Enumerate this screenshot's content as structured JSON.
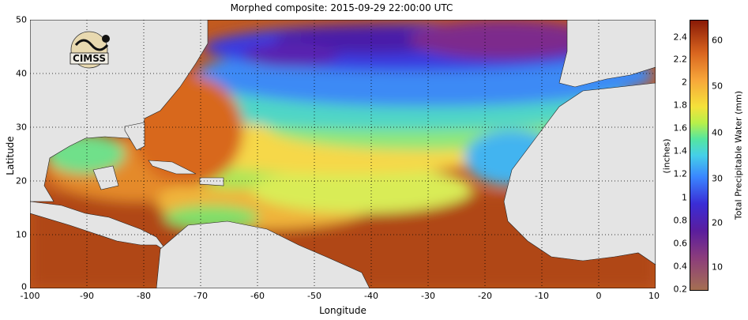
{
  "title": "Morphed composite: 2015-09-29 22:00:00 UTC",
  "xlabel": "Longitude",
  "ylabel": "Latitude",
  "xticks": [
    "-100",
    "-90",
    "-80",
    "-70",
    "-60",
    "-50",
    "-40",
    "-30",
    "-20",
    "-10",
    "0",
    "10"
  ],
  "yticks": [
    "50",
    "40",
    "30",
    "20",
    "10",
    "0"
  ],
  "logo_text": "CIMSS",
  "colorbar": {
    "title_inches": "(inches)",
    "title_mm": "Total Precipitable Water (mm)",
    "left_labels": [
      "2.4",
      "2.2",
      "2",
      "1.8",
      "1.6",
      "1.4",
      "1.2",
      "1",
      "0.8",
      "0.6",
      "0.4",
      "0.2"
    ],
    "right_labels": [
      "60",
      "50",
      "40",
      "30",
      "20",
      "10"
    ]
  },
  "colors": {
    "land": "#e4e4e4",
    "wet": "#c4511b",
    "dry": "#3a2dd6"
  }
}
